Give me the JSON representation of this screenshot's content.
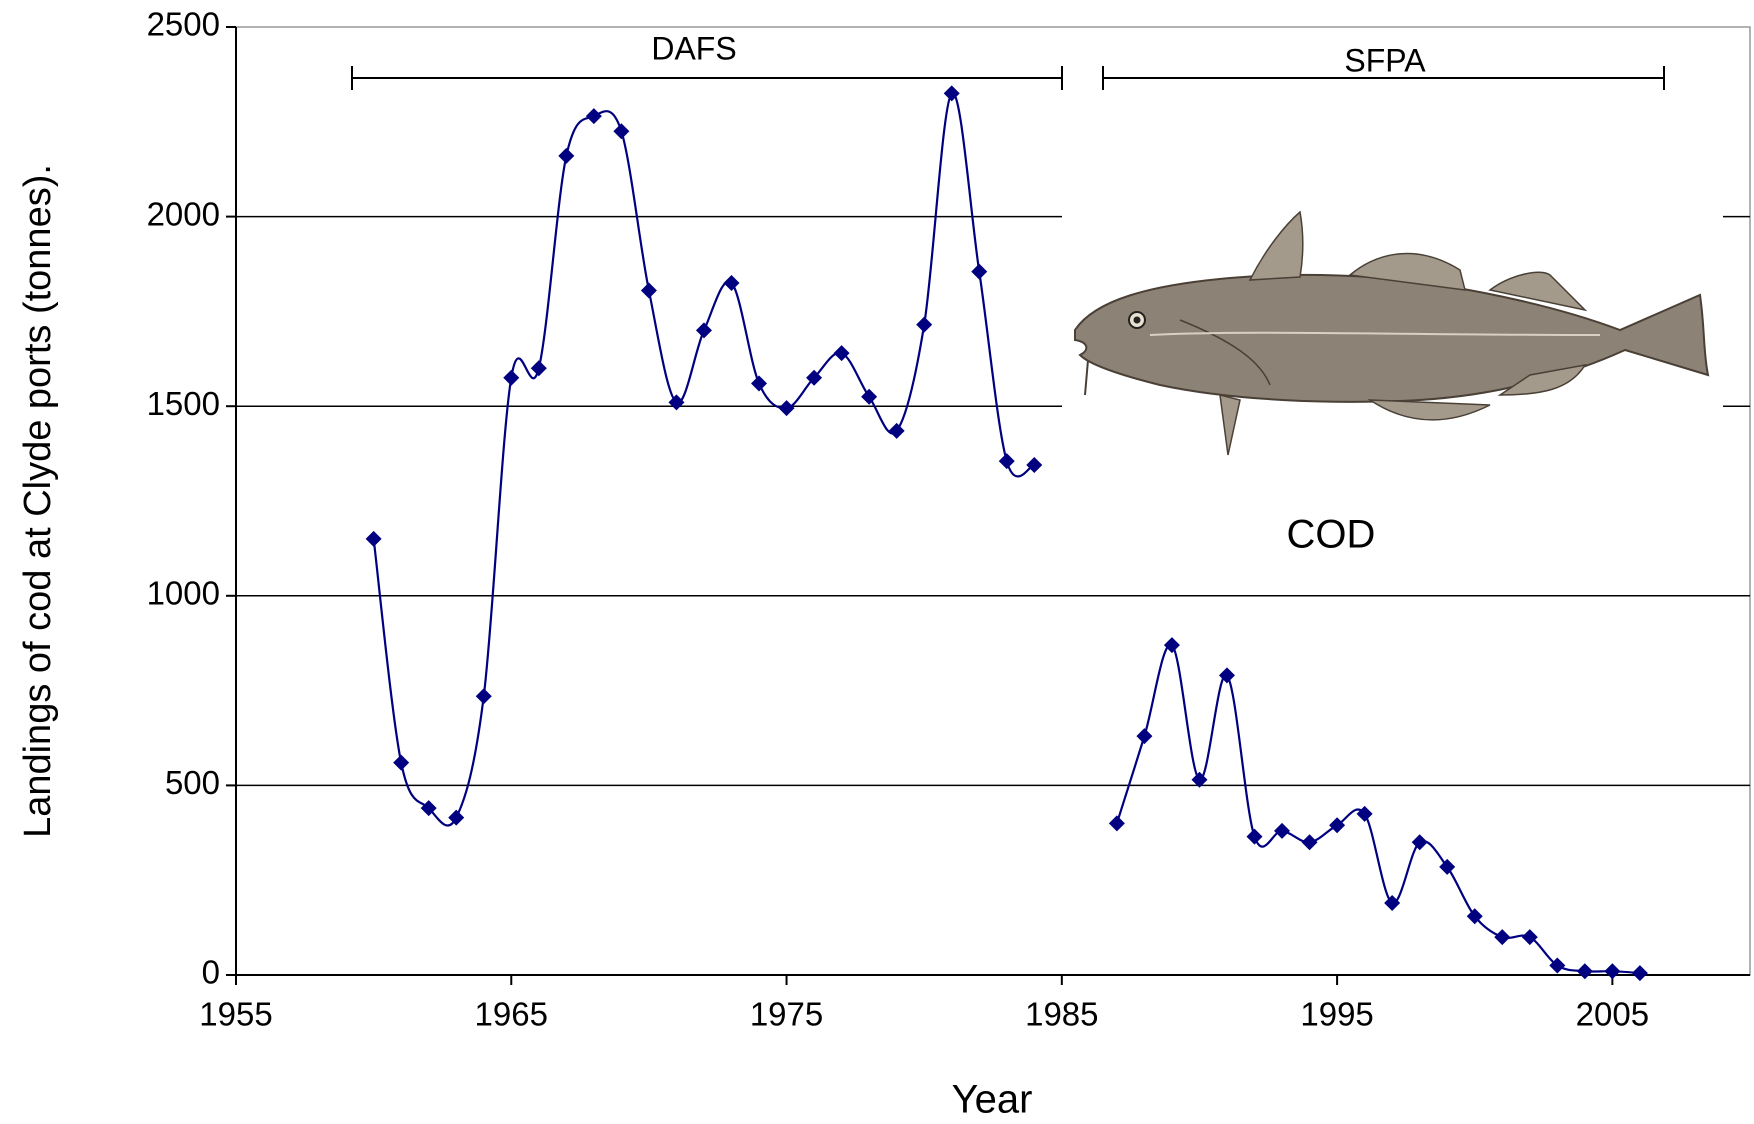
{
  "chart_data": {
    "type": "line",
    "x_label": "Year",
    "y_label": "Landings of cod  at Clyde ports (tonnes).",
    "annotations": [
      "DAFS",
      "SFPA",
      "COD"
    ],
    "x": [
      1960,
      1961,
      1962,
      1963,
      1964,
      1965,
      1966,
      1967,
      1968,
      1969,
      1970,
      1971,
      1972,
      1973,
      1974,
      1975,
      1976,
      1977,
      1978,
      1979,
      1980,
      1981,
      1982,
      1983,
      1984,
      1985,
      1986,
      1987,
      1988,
      1989,
      1990,
      1991,
      1992,
      1993,
      1994,
      1995,
      1996,
      1997,
      1998,
      1999,
      2000,
      2001,
      2002,
      2003,
      2004,
      2005,
      2006
    ],
    "values": [
      1150,
      560,
      440,
      415,
      735,
      1575,
      1600,
      2160,
      2265,
      2225,
      1805,
      1510,
      1700,
      1825,
      1560,
      1495,
      1575,
      1640,
      1525,
      1435,
      1715,
      2325,
      1855,
      1355,
      1345,
      null,
      null,
      400,
      630,
      870,
      515,
      790,
      365,
      380,
      350,
      395,
      425,
      190,
      350,
      285,
      155,
      100,
      100,
      25,
      10,
      10,
      5
    ],
    "color": "#000080",
    "xlim": [
      1955,
      2010
    ],
    "xticks": [
      1955,
      1965,
      1975,
      1985,
      1995,
      2005
    ],
    "ylim": [
      0,
      2500
    ],
    "yticks": [
      0,
      500,
      1000,
      1500,
      2000,
      2500
    ],
    "grid": true
  }
}
